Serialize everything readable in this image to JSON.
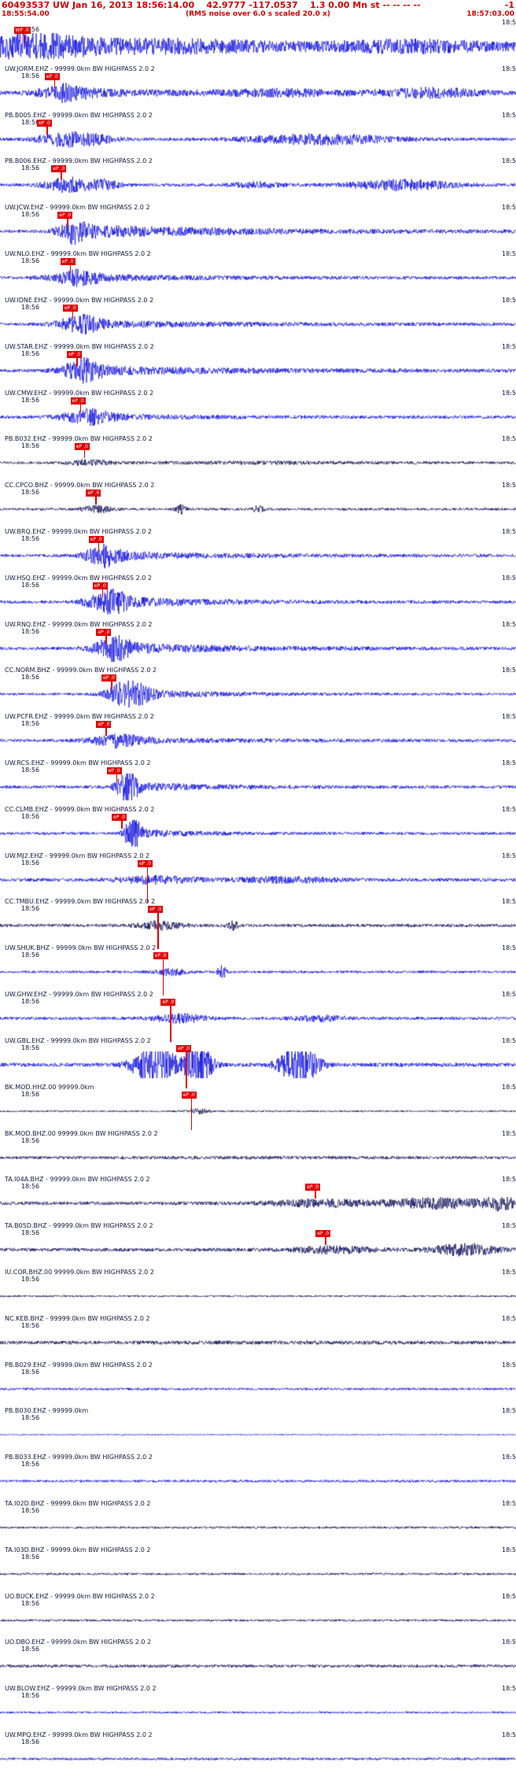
{
  "header": {
    "line1": "60493537 UW Jan 16, 2013 18:56:14.00    42.9777 -117.0537    1.3 0.00 Mn st -- -- -- --",
    "line1_right": "-1",
    "start_time": "18:55:54.00",
    "center_note": "(RMS noise over 6.0 s scaled 20.0 x)",
    "end_time": "18:57:03.00"
  },
  "colors": {
    "trace_blue": "#0000dd",
    "trace_navy": "#000050",
    "pick_red": "#e00000",
    "header_red": "#d40000"
  },
  "rows": [
    {
      "label": "",
      "time_left": "18:56",
      "time_right": "18:5",
      "pick": {
        "label": "WP .0",
        "x": 0.045,
        "lh": 12
      },
      "wave": {
        "color": "#0000dd",
        "base": 5,
        "bursts": [
          {
            "c": 0.06,
            "w": 0.1,
            "a": 12
          },
          {
            "c": 0.3,
            "w": 0.25,
            "a": 6
          },
          {
            "c": 0.8,
            "w": 0.15,
            "a": 5
          }
        ]
      }
    },
    {
      "label": "UW.JORM.EHZ - 99999.0km BW HIGHPASS  2.0  2",
      "time_left": "18:56",
      "time_right": "18:5",
      "pick": {
        "label": "eP .0",
        "x": 0.105,
        "lh": 10
      },
      "wave": {
        "color": "#0000dd",
        "base": 2.5,
        "bursts": [
          {
            "c": 0.12,
            "w": 0.05,
            "a": 7
          },
          {
            "c": 0.12,
            "w": 0.25,
            "a": 4,
            "d": 1
          },
          {
            "c": 0.55,
            "w": 0.12,
            "a": 3
          },
          {
            "c": 0.83,
            "w": 0.1,
            "a": 5
          }
        ]
      }
    },
    {
      "label": "PB.B005.EHZ - 99999.0km BW HIGHPASS  2.0  2",
      "time_left": "18:56",
      "time_right": "18:5",
      "pick": {
        "label": "eP .0",
        "x": 0.09,
        "lh": 10
      },
      "wave": {
        "color": "#0000dd",
        "base": 2,
        "bursts": [
          {
            "c": 0.11,
            "w": 0.04,
            "a": 6
          },
          {
            "c": 0.17,
            "w": 0.05,
            "a": 7
          },
          {
            "c": 0.62,
            "w": 0.14,
            "a": 6
          }
        ]
      }
    },
    {
      "label": "PB.B006.EHZ - 99999.0km BW HIGHPASS  2.0  2",
      "time_left": "18:56",
      "time_right": "18:5",
      "pick": {
        "label": "eP .0",
        "x": 0.118,
        "lh": 10
      },
      "wave": {
        "color": "#0000dd",
        "base": 2,
        "bursts": [
          {
            "c": 0.13,
            "w": 0.04,
            "a": 9
          },
          {
            "c": 0.2,
            "w": 0.03,
            "a": 6
          },
          {
            "c": 0.5,
            "w": 0.05,
            "a": 3
          },
          {
            "c": 0.78,
            "w": 0.1,
            "a": 6
          }
        ]
      }
    },
    {
      "label": "UW.JCW.EHZ - 99999.0km BW HIGHPASS  2.0  2",
      "time_left": "18:56",
      "time_right": "18:5",
      "pick": {
        "label": "eP .0",
        "x": 0.13,
        "lh": 10
      },
      "wave": {
        "color": "#0000dd",
        "base": 2,
        "bursts": [
          {
            "c": 0.135,
            "w": 0.03,
            "a": 9
          },
          {
            "c": 0.135,
            "w": 0.3,
            "a": 8,
            "d": 1
          }
        ]
      }
    },
    {
      "label": "UW.NLO.EHZ - 99999.0km BW HIGHPASS  2.0  2",
      "time_left": "18:56",
      "time_right": "18:5",
      "pick": {
        "label": "eP .0",
        "x": 0.135,
        "lh": 10
      },
      "wave": {
        "color": "#0000dd",
        "base": 2,
        "bursts": [
          {
            "c": 0.14,
            "w": 0.05,
            "a": 7
          },
          {
            "c": 0.14,
            "w": 0.2,
            "a": 4,
            "d": 1
          }
        ]
      }
    },
    {
      "label": "UW.IDNE.EHZ - 99999.0km BW HIGHPASS  2.0  2",
      "time_left": "18:56",
      "time_right": "18:5",
      "pick": {
        "label": "eP .0",
        "x": 0.14,
        "lh": 10
      },
      "wave": {
        "color": "#0000dd",
        "base": 2,
        "bursts": [
          {
            "c": 0.15,
            "w": 0.04,
            "a": 9
          },
          {
            "c": 0.15,
            "w": 0.25,
            "a": 4,
            "d": 1
          }
        ]
      }
    },
    {
      "label": "UW.STAR.EHZ - 99999.0km BW HIGHPASS  2.0  2",
      "time_left": "18:56",
      "time_right": "18:5",
      "pick": {
        "label": "eP .0",
        "x": 0.148,
        "lh": 10
      },
      "wave": {
        "color": "#0000dd",
        "base": 2,
        "bursts": [
          {
            "c": 0.155,
            "w": 0.04,
            "a": 11
          },
          {
            "c": 0.155,
            "w": 0.3,
            "a": 5,
            "d": 1
          }
        ]
      }
    },
    {
      "label": "UW.CMW.EHZ - 99999.0km BW HIGHPASS  2.0  2",
      "time_left": "18:56",
      "time_right": "18:5",
      "pick": {
        "label": "eP .0",
        "x": 0.155,
        "lh": 10
      },
      "wave": {
        "color": "#0000dd",
        "base": 2,
        "bursts": [
          {
            "c": 0.165,
            "w": 0.05,
            "a": 7
          },
          {
            "c": 0.165,
            "w": 0.2,
            "a": 3,
            "d": 1
          }
        ]
      }
    },
    {
      "label": "PB.B032.EHZ - 99999.0km BW HIGHPASS  2.0  2",
      "time_left": "18:56",
      "time_right": "18:5",
      "pick": {
        "label": "eP .0",
        "x": 0.163,
        "lh": 10
      },
      "wave": {
        "color": "#000050",
        "base": 1.6,
        "bursts": [
          {
            "c": 0.17,
            "w": 0.04,
            "a": 3
          },
          {
            "c": 0.5,
            "w": 0.3,
            "a": 1
          }
        ]
      }
    },
    {
      "label": "CC.CPCO.BHZ - 99999.0km BW HIGHPASS  2.0  2",
      "time_left": "18:56",
      "time_right": "18:5",
      "pick": {
        "label": "eP .0",
        "x": 0.185,
        "lh": 10
      },
      "wave": {
        "color": "#000050",
        "base": 1.6,
        "bursts": [
          {
            "c": 0.19,
            "w": 0.03,
            "a": 4
          },
          {
            "c": 0.35,
            "w": 0.01,
            "a": 5
          },
          {
            "c": 0.5,
            "w": 0.01,
            "a": 4
          }
        ]
      }
    },
    {
      "label": "UW.BRQ.EHZ - 99999.0km BW HIGHPASS  2.0  2",
      "time_left": "18:56",
      "time_right": "18:5",
      "pick": {
        "label": "eP .0",
        "x": 0.19,
        "lh": 10
      },
      "wave": {
        "color": "#0000dd",
        "base": 2,
        "bursts": [
          {
            "c": 0.195,
            "w": 0.035,
            "a": 10
          },
          {
            "c": 0.195,
            "w": 0.2,
            "a": 5,
            "d": 1
          }
        ]
      }
    },
    {
      "label": "UW.HSQ.EHZ - 99999.0km BW HIGHPASS  2.0  2",
      "time_left": "18:56",
      "time_right": "18:5",
      "pick": {
        "label": "eP .0",
        "x": 0.198,
        "lh": 10
      },
      "wave": {
        "color": "#0000dd",
        "base": 2,
        "bursts": [
          {
            "c": 0.205,
            "w": 0.04,
            "a": 12
          },
          {
            "c": 0.205,
            "w": 0.18,
            "a": 6,
            "d": 1
          }
        ]
      }
    },
    {
      "label": "UW.RNQ.EHZ - 99999.0km BW HIGHPASS  2.0  2",
      "time_left": "18:56",
      "time_right": "18:5",
      "pick": {
        "label": "eP .0",
        "x": 0.205,
        "lh": 10
      },
      "wave": {
        "color": "#0000dd",
        "base": 2,
        "bursts": [
          {
            "c": 0.215,
            "w": 0.035,
            "a": 13
          },
          {
            "c": 0.215,
            "w": 0.22,
            "a": 6,
            "d": 1
          }
        ]
      }
    },
    {
      "label": "CC.NORM.BHZ - 99999.0km BW HIGHPASS  2.0  2",
      "time_left": "18:56",
      "time_right": "18:5",
      "pick": {
        "label": "eP .0",
        "x": 0.215,
        "lh": 10
      },
      "wave": {
        "color": "#0000dd",
        "base": 1.6,
        "bursts": [
          {
            "c": 0.245,
            "w": 0.035,
            "a": 17
          },
          {
            "c": 0.245,
            "w": 0.15,
            "a": 6,
            "d": 1
          }
        ]
      }
    },
    {
      "label": "UW.PCFR.EHZ - 99999.0km BW HIGHPASS  2.0  2",
      "time_left": "18:56",
      "time_right": "18:5",
      "pick": {
        "label": "eP .0",
        "x": 0.205,
        "lh": 10
      },
      "wave": {
        "color": "#0000dd",
        "base": 2,
        "bursts": [
          {
            "c": 0.22,
            "w": 0.05,
            "a": 6
          },
          {
            "c": 0.22,
            "w": 0.2,
            "a": 3,
            "d": 1
          }
        ]
      }
    },
    {
      "label": "UW.RCS.EHZ - 99999.0km BW HIGHPASS  2.0  2",
      "time_left": "18:56",
      "time_right": "18:5",
      "pick": {
        "label": "eP .0",
        "x": 0.225,
        "lh": 10
      },
      "wave": {
        "color": "#0000dd",
        "base": 2,
        "bursts": [
          {
            "c": 0.245,
            "w": 0.02,
            "a": 18
          },
          {
            "c": 0.245,
            "w": 0.15,
            "a": 5,
            "d": 1
          }
        ]
      }
    },
    {
      "label": "CC.CLMB.EHZ - 99999.0km BW HIGHPASS  2.0  2",
      "time_left": "18:56",
      "time_right": "18:5",
      "pick": {
        "label": "eP .0",
        "x": 0.235,
        "lh": 10
      },
      "wave": {
        "color": "#0000dd",
        "base": 1.8,
        "bursts": [
          {
            "c": 0.255,
            "w": 0.015,
            "a": 20
          },
          {
            "c": 0.255,
            "w": 0.1,
            "a": 5,
            "d": 1
          }
        ]
      }
    },
    {
      "label": "UW.MJ2.EHZ - 99999.0km BW HIGHPASS  2.0  2",
      "time_left": "18:56",
      "time_right": "18:5",
      "pick": {
        "label": "eP .0",
        "x": 0.285,
        "lh": 46
      },
      "wave": {
        "color": "#0000dd",
        "base": 2.2,
        "bursts": [
          {
            "c": 0.3,
            "w": 0.08,
            "a": 4
          },
          {
            "c": 0.55,
            "w": 0.1,
            "a": 3
          }
        ]
      }
    },
    {
      "label": "CC.TMBU.EHZ - 99999.0km BW HIGHPASS  2.0  2",
      "time_left": "18:56",
      "time_right": "18:5",
      "pick": {
        "label": "eP .0",
        "x": 0.305,
        "lh": 46
      },
      "wave": {
        "color": "#000050",
        "base": 2,
        "bursts": [
          {
            "c": 0.31,
            "w": 0.04,
            "a": 5
          },
          {
            "c": 0.45,
            "w": 0.01,
            "a": 6
          }
        ]
      }
    },
    {
      "label": "UW.SHUK.BHZ - 99999.0km BW HIGHPASS  2.0  2",
      "time_left": "18:56",
      "time_right": "18:5",
      "pick": {
        "label": "eP .0",
        "x": 0.315,
        "lh": 46
      },
      "wave": {
        "color": "#0000dd",
        "base": 1.6,
        "bursts": [
          {
            "c": 0.33,
            "w": 0.03,
            "a": 4
          },
          {
            "c": 0.43,
            "w": 0.008,
            "a": 9
          }
        ]
      }
    },
    {
      "label": "UW.GHW.EHZ - 99999.0km BW HIGHPASS  2.0  2",
      "time_left": "18:56",
      "time_right": "18:5",
      "pick": {
        "label": "eP .0",
        "x": 0.33,
        "lh": 46
      },
      "wave": {
        "color": "#0000dd",
        "base": 2,
        "bursts": [
          {
            "c": 0.35,
            "w": 0.05,
            "a": 5
          },
          {
            "c": 0.62,
            "w": 0.05,
            "a": 3
          }
        ]
      }
    },
    {
      "label": "UW.GBL.EHZ - 99999.0km BW HIGHPASS  2.0  2",
      "time_left": "18:56",
      "time_right": "18:5",
      "pick": {
        "label": "eP .0",
        "x": 0.36,
        "lh": 46
      },
      "wave": {
        "color": "#0000dd",
        "base": 2.5,
        "clip": 17,
        "bursts": [
          {
            "c": 0.3,
            "w": 0.04,
            "a": 26
          },
          {
            "c": 0.385,
            "w": 0.025,
            "a": 26
          },
          {
            "c": 0.58,
            "w": 0.035,
            "a": 26
          }
        ]
      }
    },
    {
      "label": "BK.MOD.HHZ.00 99999.0km",
      "time_left": "18:56",
      "time_right": "18:5",
      "pick": {
        "label": "eP .0",
        "x": 0.37,
        "lh": 40
      },
      "wave": {
        "color": "#000050",
        "base": 1.1,
        "bursts": [
          {
            "c": 0.385,
            "w": 0.02,
            "a": 3
          }
        ]
      }
    },
    {
      "label": "BK.MOD.BHZ.00 99999.0km BW HIGHPASS  2.0  2",
      "time_left": "18:56",
      "time_right": "18:5",
      "pick": null,
      "wave": {
        "color": "#000050",
        "base": 1.6,
        "bursts": [
          {
            "c": 0.5,
            "w": 0.4,
            "a": 0.6
          }
        ]
      }
    },
    {
      "label": "TA.I04A.BHZ - 99999.0km BW HIGHPASS  2.0  2",
      "time_left": "18:56",
      "time_right": "18:5",
      "pick": {
        "label": "eP .0",
        "x": 0.61,
        "lh": 10
      },
      "wave": {
        "color": "#000050",
        "base": 2.2,
        "bursts": [
          {
            "c": 0.62,
            "w": 0.1,
            "a": 4
          },
          {
            "c": 0.85,
            "w": 0.1,
            "a": 6
          },
          {
            "c": 0.97,
            "w": 0.03,
            "a": 7
          }
        ]
      }
    },
    {
      "label": "TA.B05D.BHZ - 99999.0km BW HIGHPASS  2.0  2",
      "time_left": "18:56",
      "time_right": "18:5",
      "pick": {
        "label": "eP .0",
        "x": 0.63,
        "lh": 10
      },
      "wave": {
        "color": "#000050",
        "base": 2.2,
        "bursts": [
          {
            "c": 0.65,
            "w": 0.08,
            "a": 4
          },
          {
            "c": 0.9,
            "w": 0.06,
            "a": 7
          }
        ]
      }
    },
    {
      "label": "IU.COR.BHZ.00 99999.0km BW HIGHPASS  2.0  2",
      "time_left": "18:56",
      "time_right": "18:5",
      "pick": null,
      "wave": {
        "color": "#000050",
        "base": 1.2,
        "bursts": []
      }
    },
    {
      "label": "NC.KEB.BHZ - 99999.0km BW HIGHPASS  2.0  2",
      "time_left": "18:56",
      "time_right": "18:5",
      "pick": null,
      "wave": {
        "color": "#000050",
        "base": 2,
        "bursts": [
          {
            "c": 0.5,
            "w": 0.5,
            "a": 0.5
          }
        ]
      }
    },
    {
      "label": "PB.B029.EHZ - 99999.0km BW HIGHPASS  2.0  2",
      "time_left": "18:56",
      "time_right": "18:5",
      "pick": null,
      "wave": {
        "color": "#0000dd",
        "base": 1.5,
        "bursts": []
      }
    },
    {
      "label": "PB.B030.EHZ - 99999.0km",
      "time_left": "18:56",
      "time_right": "18:5",
      "pick": null,
      "wave": {
        "color": "#0000dd",
        "base": 0.7,
        "bursts": []
      }
    },
    {
      "label": "PB.B033.EHZ - 99999.0km BW HIGHPASS  2.0  2",
      "time_left": "18:56",
      "time_right": "18:5",
      "pick": null,
      "wave": {
        "color": "#0000dd",
        "base": 1.6,
        "bursts": []
      }
    },
    {
      "label": "TA.I02D.BHZ - 99999.0km BW HIGHPASS  2.0  2",
      "time_left": "18:56",
      "time_right": "18:5",
      "pick": null,
      "wave": {
        "color": "#000050",
        "base": 1.4,
        "bursts": []
      }
    },
    {
      "label": "TA.I03D.BHZ - 99999.0km BW HIGHPASS  2.0  2",
      "time_left": "18:56",
      "time_right": "18:5",
      "pick": null,
      "wave": {
        "color": "#000050",
        "base": 1.4,
        "bursts": []
      }
    },
    {
      "label": "UO.BUCK.EHZ - 99999.0km BW HIGHPASS  2.0  2",
      "time_left": "18:56",
      "time_right": "18:5",
      "pick": null,
      "wave": {
        "color": "#000050",
        "base": 1.4,
        "bursts": []
      }
    },
    {
      "label": "UO.DBO.EHZ - 99999.0km BW HIGHPASS  2.0  2",
      "time_left": "18:56",
      "time_right": "18:5",
      "pick": null,
      "wave": {
        "color": "#000050",
        "base": 1.9,
        "bursts": []
      }
    },
    {
      "label": "UW.BLOW.EHZ - 99999.0km BW HIGHPASS  2.0  2",
      "time_left": "18:56",
      "time_right": "18:5",
      "pick": null,
      "wave": {
        "color": "#0000dd",
        "base": 1.3,
        "bursts": []
      }
    },
    {
      "label": "UW.MPQ.EHZ - 99999.0km BW HIGHPASS  2.0  2",
      "time_left": "18:56",
      "time_right": "18:5",
      "pick": null,
      "wave": {
        "color": "#0000dd",
        "base": 1.6,
        "bursts": []
      }
    }
  ]
}
